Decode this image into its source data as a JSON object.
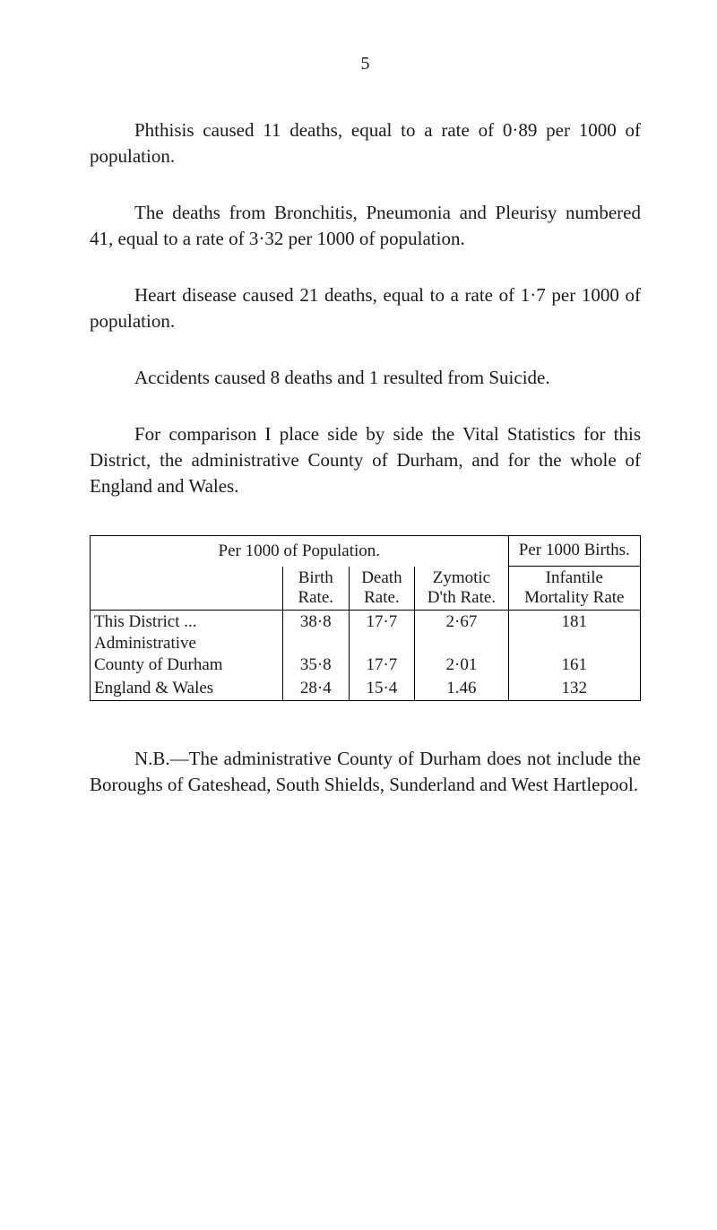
{
  "page_number": "5",
  "paragraphs": {
    "p1": "Phthisis caused 11 deaths, equal to a rate of 0·89 per 1000 of population.",
    "p2": "The deaths from Bronchitis, Pneumonia and Pleurisy numbered 41, equal to a rate of 3·32 per 1000 of population.",
    "p3": "Heart disease caused 21 deaths, equal to a rate of 1·7 per 1000 of population.",
    "p4": "Accidents caused 8 deaths and 1 resulted from Suicide.",
    "p5": "For comparison I place side by side the Vital Statistics for this District, the administrative County of Durham, and for the whole of England and Wales."
  },
  "table": {
    "header1_population": "Per 1000 of Population.",
    "header1_births": "Per 1000 Births.",
    "col_headers": {
      "birth": "Birth Rate.",
      "death": "Death Rate.",
      "zymotic": "Zymotic D'th Rate.",
      "infantile": "Infantile Mortality Rate"
    },
    "rows": [
      {
        "label": "This District      ...",
        "birth": "38·8",
        "death": "17·7",
        "zymotic": "2·67",
        "infantile": "181"
      },
      {
        "label": "Administrative",
        "birth": "",
        "death": "",
        "zymotic": "",
        "infantile": ""
      },
      {
        "label": "  County of Durham",
        "birth": "35·8",
        "death": "17·7",
        "zymotic": "2·01",
        "infantile": "161"
      },
      {
        "label": "England & Wales",
        "birth": "28·4",
        "death": "15·4",
        "zymotic": "1.46",
        "infantile": "132"
      }
    ]
  },
  "footnote": "N.B.—The administrative County of Durham does not include the Boroughs of Gateshead, South Shields, Sunderland and West Hartlepool.",
  "styles": {
    "background_color": "#ffffff",
    "text_color": "#1a1a1a",
    "font_family": "Georgia, Times New Roman, serif",
    "body_font_size": 21,
    "table_font_size": 19,
    "border_color": "#000000"
  }
}
